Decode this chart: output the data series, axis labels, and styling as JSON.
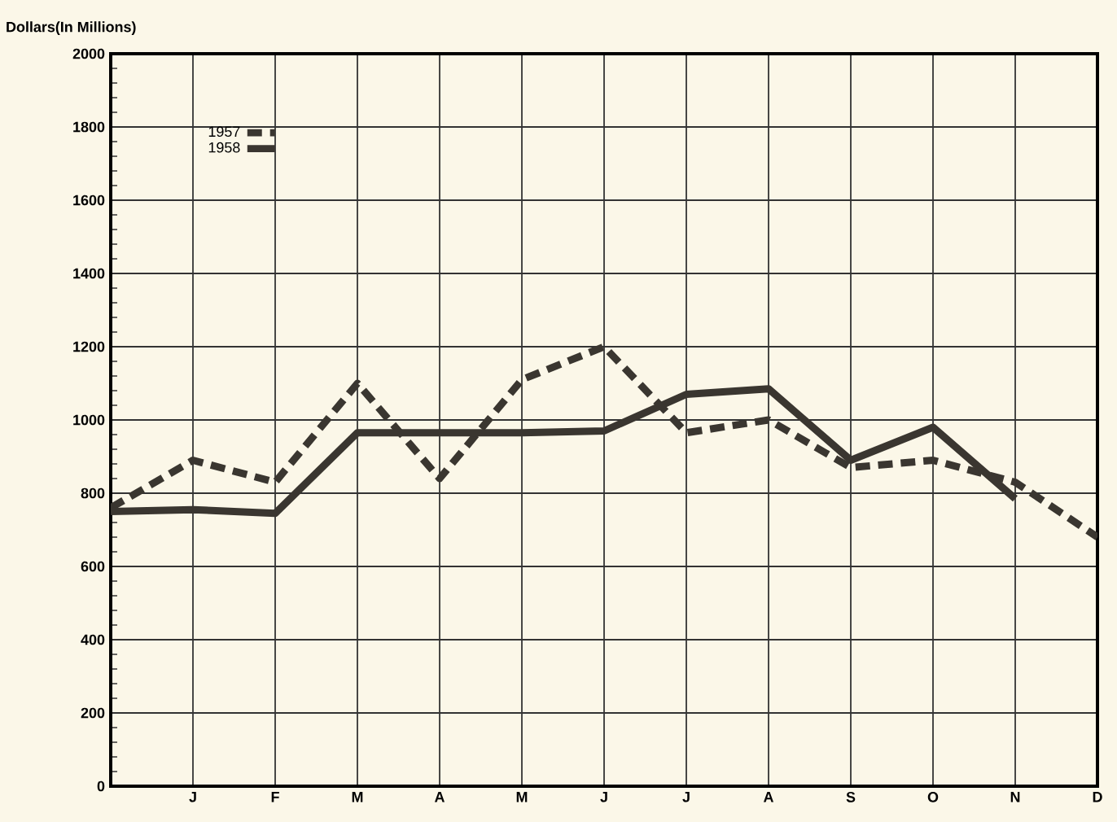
{
  "chart_data": {
    "type": "line",
    "ylabel": "Dollars(In Millions)",
    "categories": [
      null,
      "J",
      "F",
      "M",
      "A",
      "M",
      "J",
      "J",
      "A",
      "S",
      "O",
      "N",
      "D"
    ],
    "series": [
      {
        "name": "1957",
        "color": "#3a3630",
        "line_style": "dashed",
        "values": [
          760,
          890,
          830,
          1100,
          840,
          1110,
          1200,
          965,
          1000,
          870,
          890,
          830,
          680
        ]
      },
      {
        "name": "1958",
        "color": "#3a3630",
        "line_style": "solid",
        "values": [
          750,
          755,
          745,
          965,
          965,
          965,
          970,
          1070,
          1085,
          890,
          980,
          785,
          null
        ]
      }
    ],
    "ylim": [
      0,
      2000
    ],
    "yticks": [
      0,
      200,
      400,
      600,
      800,
      1000,
      1200,
      1400,
      1600,
      1800,
      2000
    ],
    "grid": true,
    "legend": "top left"
  }
}
